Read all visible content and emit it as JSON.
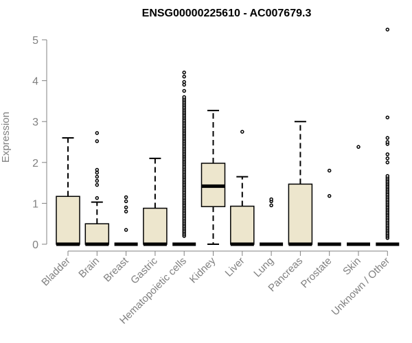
{
  "chart_data": {
    "type": "boxplot",
    "title": "ENSG00000225610 - AC007679.3",
    "xlabel": "",
    "ylabel": "Expression",
    "ylim": [
      0,
      5.3
    ],
    "yticks": [
      0,
      1,
      2,
      3,
      4,
      5
    ],
    "grid": false,
    "legend": "none",
    "categories": [
      "Bladder",
      "Brain",
      "Breast",
      "Gastric",
      "Hematopoietic cells",
      "Kidney",
      "Liver",
      "Lung",
      "Pancreas",
      "Prostate",
      "Skin",
      "Unknown / Other"
    ],
    "boxes": [
      {
        "category": "Bladder",
        "q1": 0,
        "median": 0,
        "q3": 1.17,
        "whisker_low": 0,
        "whisker_high": 2.6,
        "outliers": []
      },
      {
        "category": "Brain",
        "q1": 0,
        "median": 0,
        "q3": 0.5,
        "whisker_low": 0,
        "whisker_high": 1.03,
        "outliers": [
          1.13,
          1.45,
          1.55,
          1.65,
          1.75,
          1.82,
          2.52,
          2.72
        ]
      },
      {
        "category": "Breast",
        "q1": 0,
        "median": 0,
        "q3": 0,
        "whisker_low": 0,
        "whisker_high": 0,
        "outliers": [
          0.35,
          0.8,
          0.9,
          1.05,
          1.15
        ]
      },
      {
        "category": "Gastric",
        "q1": 0,
        "median": 0,
        "q3": 0.88,
        "whisker_low": 0,
        "whisker_high": 2.1,
        "outliers": []
      },
      {
        "category": "Hematopoietic cells",
        "q1": 0,
        "median": 0,
        "q3": 0,
        "whisker_low": 0,
        "whisker_high": 0,
        "outliers_range": [
          0.2,
          3.6
        ],
        "outliers_range_step": 0.04,
        "outliers": [
          3.75,
          3.9,
          3.97,
          4.1,
          4.2
        ]
      },
      {
        "category": "Kidney",
        "q1": 0.92,
        "median": 1.42,
        "q3": 1.98,
        "whisker_low": 0,
        "whisker_high": 3.27,
        "outliers": []
      },
      {
        "category": "Liver",
        "q1": 0,
        "median": 0,
        "q3": 0.93,
        "whisker_low": 0,
        "whisker_high": 1.65,
        "outliers": [
          2.75
        ]
      },
      {
        "category": "Lung",
        "q1": 0,
        "median": 0,
        "q3": 0,
        "whisker_low": 0,
        "whisker_high": 0,
        "outliers": [
          0.95,
          1.05,
          1.1
        ]
      },
      {
        "category": "Pancreas",
        "q1": 0,
        "median": 0,
        "q3": 1.47,
        "whisker_low": 0,
        "whisker_high": 3.0,
        "outliers": []
      },
      {
        "category": "Prostate",
        "q1": 0,
        "median": 0,
        "q3": 0,
        "whisker_low": 0,
        "whisker_high": 0,
        "outliers": [
          1.18,
          1.8
        ]
      },
      {
        "category": "Skin",
        "q1": 0,
        "median": 0,
        "q3": 0,
        "whisker_low": 0,
        "whisker_high": 0,
        "outliers": [
          2.38
        ]
      },
      {
        "category": "Unknown / Other",
        "q1": 0,
        "median": 0,
        "q3": 0,
        "whisker_low": 0,
        "whisker_high": 0,
        "outliers_range": [
          0.15,
          1.7
        ],
        "outliers_range_step": 0.04,
        "outliers": [
          2.0,
          2.1,
          2.2,
          2.45,
          2.5,
          2.6,
          3.1,
          5.25
        ]
      }
    ],
    "box_fill": "#ede6cd",
    "axis_color": "#808080",
    "text_color": "#808080",
    "mark_color": "#000000"
  }
}
